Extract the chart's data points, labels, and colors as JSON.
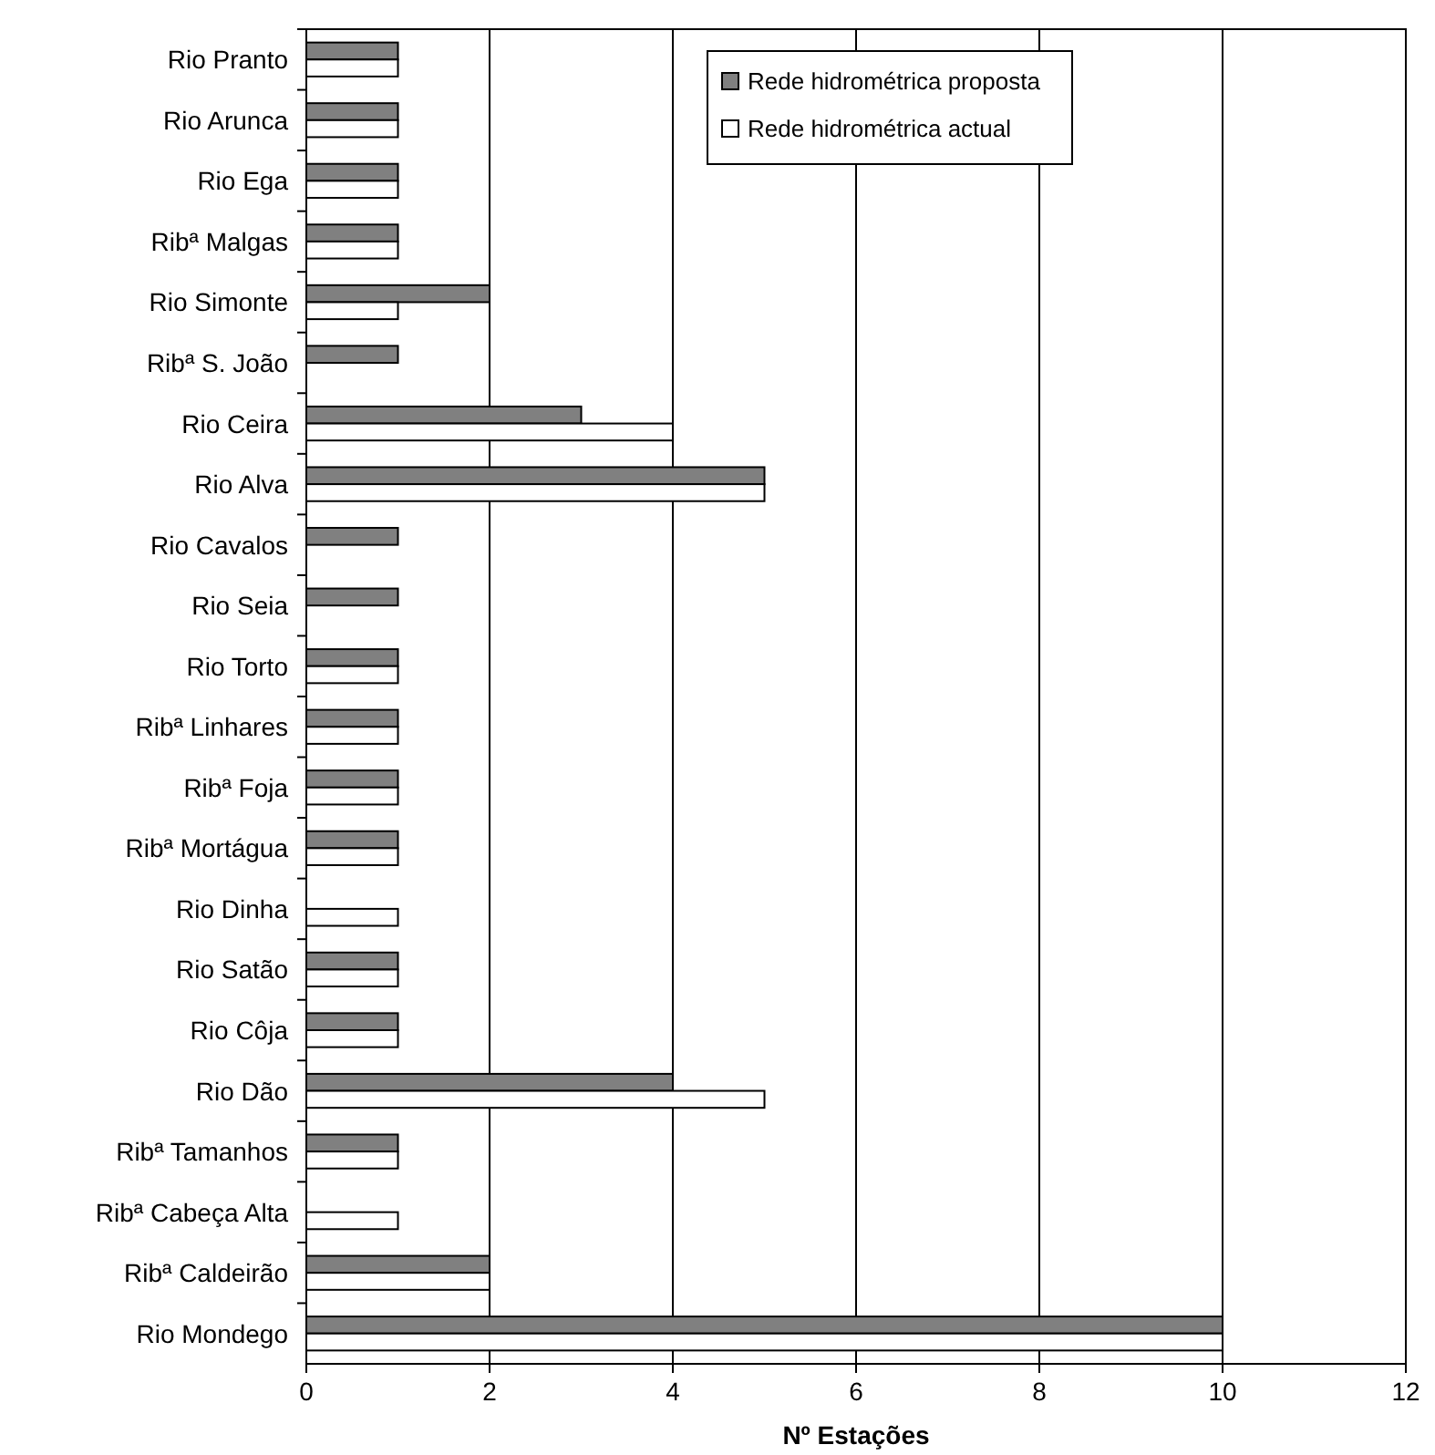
{
  "chart_data": {
    "type": "bar",
    "orientation": "horizontal",
    "xlabel": "Nº Estações",
    "categories": [
      "Rio Pranto",
      "Rio Arunca",
      "Rio Ega",
      "Ribª Malgas",
      "Rio Simonte",
      "Ribª S. João",
      "Rio Ceira",
      "Rio Alva",
      "Rio Cavalos",
      "Rio Seia",
      "Rio Torto",
      "Ribª Linhares",
      "Ribª Foja",
      "Ribª Mortágua",
      "Rio Dinha",
      "Rio Satão",
      "Rio Côja",
      "Rio Dão",
      "Ribª Tamanhos",
      "Ribª Cabeça Alta",
      "Ribª Caldeirão",
      "Rio Mondego"
    ],
    "series": [
      {
        "name": "Rede hidrométrica proposta",
        "color": "#808080",
        "values": [
          1,
          1,
          1,
          1,
          2,
          1,
          3,
          5,
          1,
          1,
          1,
          1,
          1,
          1,
          0,
          1,
          1,
          4,
          1,
          0,
          2,
          10
        ]
      },
      {
        "name": "Rede hidrométrica actual",
        "color": "#ffffff",
        "values": [
          1,
          1,
          1,
          1,
          1,
          0,
          4,
          5,
          0,
          0,
          1,
          1,
          1,
          1,
          1,
          1,
          1,
          5,
          1,
          1,
          2,
          10
        ]
      }
    ],
    "xlim": [
      0,
      12
    ],
    "xticks": [
      0,
      2,
      4,
      6,
      8,
      10,
      12
    ],
    "grid": "x",
    "legend": "top right"
  }
}
